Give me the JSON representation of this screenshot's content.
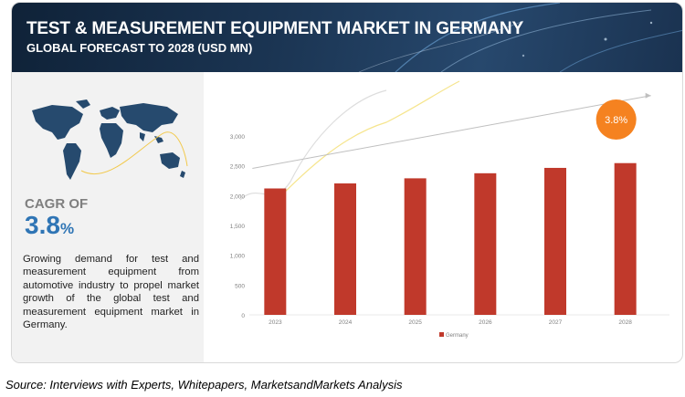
{
  "header": {
    "title": "TEST & MEASUREMENT EQUIPMENT MARKET IN GERMANY",
    "subtitle": "GLOBAL FORECAST TO 2028 (USD MN)"
  },
  "summary": {
    "cagr_label": "CAGR OF",
    "cagr_value": "3.8",
    "cagr_unit": "%",
    "description": "Growing demand for test and measurement equipment from automotive industry to propel market growth of the global test and measurement equipment market in Germany."
  },
  "colors": {
    "banner": "#1b3553",
    "bar": "#c0392b",
    "badge": "#f58220",
    "cagr": "#2f75b5",
    "map": "#264a6e"
  },
  "icons": [
    "world-map-icon",
    "growth-arrow-icon"
  ],
  "chart_data": {
    "type": "bar",
    "categories": [
      "2023",
      "2024",
      "2025",
      "2026",
      "2027",
      "2028"
    ],
    "series": [
      {
        "name": "Germany",
        "values": [
          2120,
          2205,
          2290,
          2375,
          2465,
          2545
        ]
      }
    ],
    "yticks": [
      "0",
      "500",
      "1,000",
      "1,500",
      "2,000",
      "2,500",
      "3,000"
    ],
    "ylim": [
      0,
      3000
    ],
    "legend_position": "bottom",
    "annotation": "3.8%",
    "grid": false
  },
  "footer": {
    "source": "Source: Interviews with Experts, Whitepapers, MarketsandMarkets Analysis"
  }
}
